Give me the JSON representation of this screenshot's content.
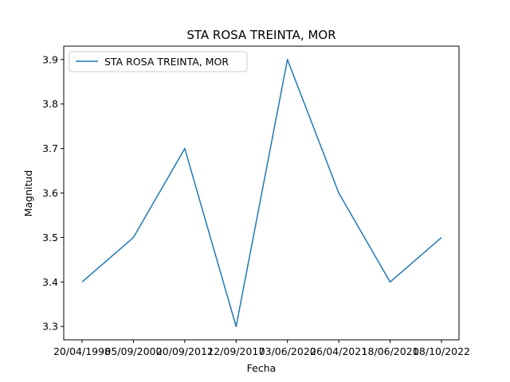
{
  "chart_data": {
    "type": "line",
    "title": "STA ROSA TREINTA, MOR",
    "xlabel": "Fecha",
    "ylabel": "Magnitud",
    "categories": [
      "20/04/1998",
      "05/09/2000",
      "20/09/2012",
      "12/09/2017",
      "03/06/2020",
      "26/04/2021",
      "18/06/2021",
      "08/10/2022"
    ],
    "series": [
      {
        "name": "STA ROSA TREINTA, MOR",
        "values": [
          3.4,
          3.5,
          3.7,
          3.3,
          3.9,
          3.6,
          3.4,
          3.5
        ],
        "color": "#1f77b4"
      }
    ],
    "ylim": [
      3.27,
      3.93
    ],
    "yticks": [
      "3.3",
      "3.4",
      "3.5",
      "3.6",
      "3.7",
      "3.8",
      "3.9"
    ],
    "grid": false,
    "legend_position": "top-left"
  }
}
